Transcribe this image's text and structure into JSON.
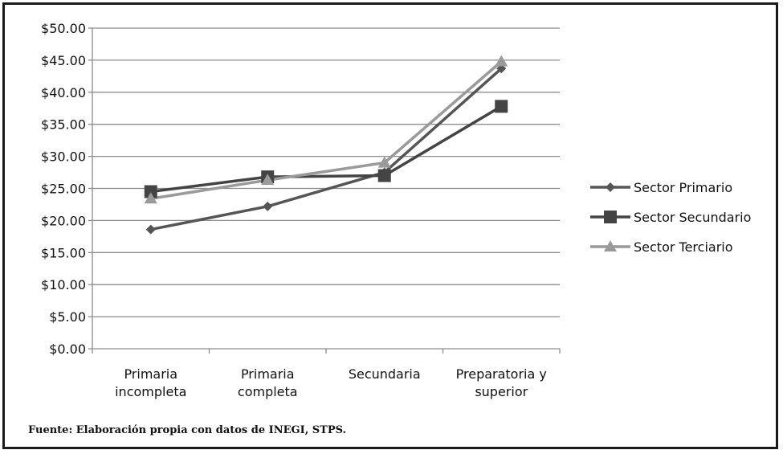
{
  "chart_data": {
    "type": "line",
    "title": "",
    "xlabel": "",
    "ylabel": "",
    "categories": [
      [
        "Primaria",
        "incompleta"
      ],
      [
        "Primaria",
        "completa"
      ],
      [
        "Secundaria"
      ],
      [
        "Preparatoria y",
        "superior"
      ]
    ],
    "y_ticks": [
      "$0.00",
      "$5.00",
      "$10.00",
      "$15.00",
      "$20.00",
      "$25.00",
      "$30.00",
      "$35.00",
      "$40.00",
      "$45.00",
      "$50.00"
    ],
    "ylim": [
      0,
      50
    ],
    "grid": true,
    "legend_position": "right",
    "series": [
      {
        "name": "Sector Primario",
        "marker": "diamond",
        "color": "#555555",
        "values": [
          18.6,
          22.2,
          27.5,
          43.7
        ]
      },
      {
        "name": "Sector Secundario",
        "marker": "square",
        "color": "#444444",
        "values": [
          24.5,
          26.8,
          27.0,
          37.8
        ]
      },
      {
        "name": "Sector Terciario",
        "marker": "triangle",
        "color": "#9a9a9a",
        "values": [
          23.4,
          26.3,
          29.0,
          44.8
        ]
      }
    ]
  },
  "footer": {
    "source": "Fuente: Elaboración propia con datos de INEGI, STPS."
  }
}
